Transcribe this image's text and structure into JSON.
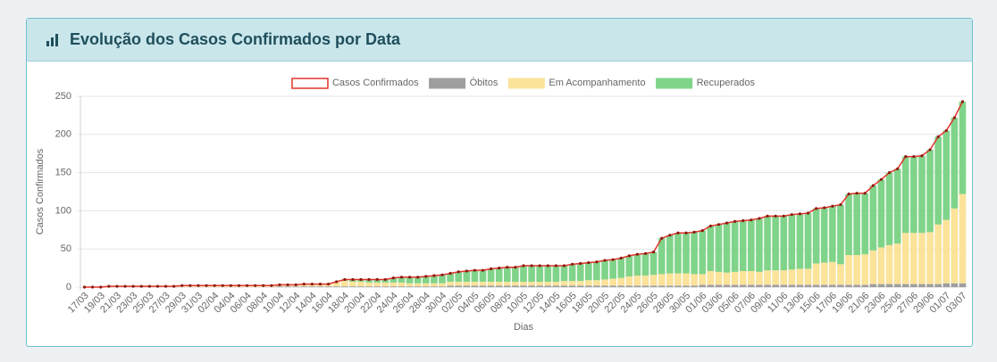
{
  "panel": {
    "title": "Evolução dos Casos Confirmados por Data"
  },
  "chart_data": {
    "type": "bar",
    "stacked": true,
    "legend": "top",
    "grid": true,
    "xlabel": "Dias",
    "ylabel": "Casos Confirmados",
    "ylim": [
      0,
      250
    ],
    "yticks": [
      0,
      50,
      100,
      150,
      200,
      250
    ],
    "categories": [
      "17/03",
      null,
      "19/03",
      null,
      "21/03",
      null,
      "23/03",
      null,
      "25/03",
      null,
      "27/03",
      null,
      "29/03",
      null,
      "31/03",
      null,
      "02/04",
      null,
      "04/04",
      null,
      "06/04",
      null,
      "08/04",
      null,
      "10/04",
      null,
      "12/04",
      null,
      "14/04",
      null,
      "16/04",
      null,
      "18/04",
      null,
      "20/04",
      null,
      "22/04",
      null,
      "24/04",
      null,
      "26/04",
      null,
      "28/04",
      null,
      "30/04",
      null,
      "02/05",
      null,
      "04/05",
      null,
      "06/05",
      null,
      "08/05",
      null,
      "10/05",
      null,
      "12/05",
      null,
      "14/05",
      null,
      "16/05",
      null,
      "18/05",
      null,
      "20/05",
      null,
      "22/05",
      null,
      "24/05",
      null,
      "26/05",
      null,
      "28/05",
      null,
      "30/05",
      null,
      "01/06",
      null,
      "03/06",
      null,
      "05/06",
      null,
      "07/06",
      null,
      "09/06",
      null,
      "11/06",
      null,
      "13/06",
      null,
      "15/06",
      null,
      "17/06",
      null,
      "19/06",
      null,
      "21/06",
      null,
      "23/06",
      null,
      "25/06",
      null,
      "27/06",
      null,
      "29/06",
      null,
      "01/07",
      null,
      "03/07"
    ],
    "series": [
      {
        "name": "Casos Confirmados",
        "type": "line",
        "color": "#e0342b",
        "values": [
          0,
          0,
          0,
          1,
          1,
          1,
          1,
          1,
          1,
          1,
          1,
          1,
          2,
          2,
          2,
          2,
          2,
          2,
          2,
          2,
          2,
          2,
          2,
          2,
          3,
          3,
          3,
          4,
          4,
          4,
          4,
          7,
          10,
          10,
          10,
          10,
          10,
          10,
          12,
          13,
          13,
          13,
          14,
          15,
          16,
          18,
          20,
          21,
          22,
          22,
          24,
          25,
          26,
          26,
          28,
          28,
          28,
          28,
          28,
          28,
          30,
          31,
          32,
          33,
          35,
          36,
          38,
          41,
          43,
          44,
          46,
          64,
          68,
          71,
          71,
          72,
          74,
          80,
          82,
          84,
          86,
          87,
          88,
          90,
          93,
          93,
          93,
          95,
          96,
          97,
          103,
          104,
          106,
          108,
          122,
          123,
          123,
          133,
          141,
          150,
          155,
          171,
          171,
          172,
          180,
          197,
          205,
          222,
          243
        ]
      },
      {
        "name": "Óbitos",
        "color": "#9e9e9e",
        "values": [
          0,
          0,
          0,
          0,
          0,
          0,
          0,
          0,
          0,
          0,
          0,
          0,
          0,
          0,
          0,
          0,
          0,
          0,
          0,
          0,
          0,
          0,
          0,
          0,
          1,
          1,
          1,
          1,
          1,
          1,
          1,
          1,
          1,
          1,
          1,
          1,
          1,
          1,
          1,
          1,
          1,
          1,
          1,
          1,
          1,
          2,
          2,
          2,
          2,
          2,
          2,
          2,
          2,
          2,
          2,
          2,
          2,
          2,
          2,
          2,
          2,
          2,
          2,
          2,
          2,
          2,
          2,
          2,
          2,
          2,
          2,
          2,
          2,
          2,
          2,
          2,
          3,
          3,
          3,
          3,
          3,
          3,
          3,
          3,
          3,
          3,
          3,
          3,
          3,
          3,
          3,
          3,
          3,
          3,
          3,
          3,
          3,
          4,
          4,
          4,
          4,
          4,
          4,
          4,
          4,
          4,
          5,
          5,
          5
        ]
      },
      {
        "name": "Em Acompanhamento",
        "color": "#fbe39a",
        "values": [
          0,
          0,
          0,
          1,
          1,
          1,
          1,
          1,
          1,
          1,
          1,
          1,
          2,
          2,
          2,
          2,
          2,
          2,
          2,
          2,
          2,
          2,
          2,
          2,
          2,
          2,
          2,
          3,
          3,
          3,
          3,
          6,
          7,
          6,
          6,
          5,
          5,
          5,
          5,
          5,
          4,
          4,
          4,
          4,
          4,
          5,
          5,
          5,
          5,
          5,
          5,
          5,
          5,
          5,
          5,
          5,
          5,
          5,
          5,
          6,
          6,
          6,
          7,
          7,
          8,
          9,
          10,
          12,
          13,
          13,
          14,
          15,
          16,
          16,
          16,
          15,
          14,
          18,
          17,
          16,
          17,
          18,
          18,
          17,
          19,
          19,
          19,
          20,
          21,
          21,
          28,
          29,
          30,
          27,
          39,
          39,
          40,
          44,
          48,
          51,
          53,
          67,
          67,
          67,
          68,
          78,
          83,
          98,
          117
        ]
      },
      {
        "name": "Recuperados",
        "color": "#80d489",
        "values": [
          0,
          0,
          0,
          0,
          0,
          0,
          0,
          0,
          0,
          0,
          0,
          0,
          0,
          0,
          0,
          0,
          0,
          0,
          0,
          0,
          0,
          0,
          0,
          0,
          0,
          0,
          0,
          0,
          0,
          0,
          0,
          0,
          2,
          3,
          3,
          4,
          4,
          4,
          6,
          7,
          8,
          8,
          9,
          10,
          11,
          11,
          13,
          14,
          15,
          15,
          17,
          18,
          19,
          19,
          21,
          21,
          21,
          21,
          21,
          20,
          22,
          23,
          23,
          24,
          25,
          25,
          26,
          27,
          28,
          29,
          30,
          47,
          50,
          53,
          53,
          55,
          57,
          59,
          62,
          65,
          66,
          66,
          67,
          70,
          71,
          71,
          71,
          72,
          72,
          73,
          72,
          72,
          73,
          78,
          80,
          81,
          80,
          85,
          89,
          95,
          98,
          100,
          100,
          101,
          108,
          115,
          117,
          119,
          121
        ]
      }
    ]
  }
}
